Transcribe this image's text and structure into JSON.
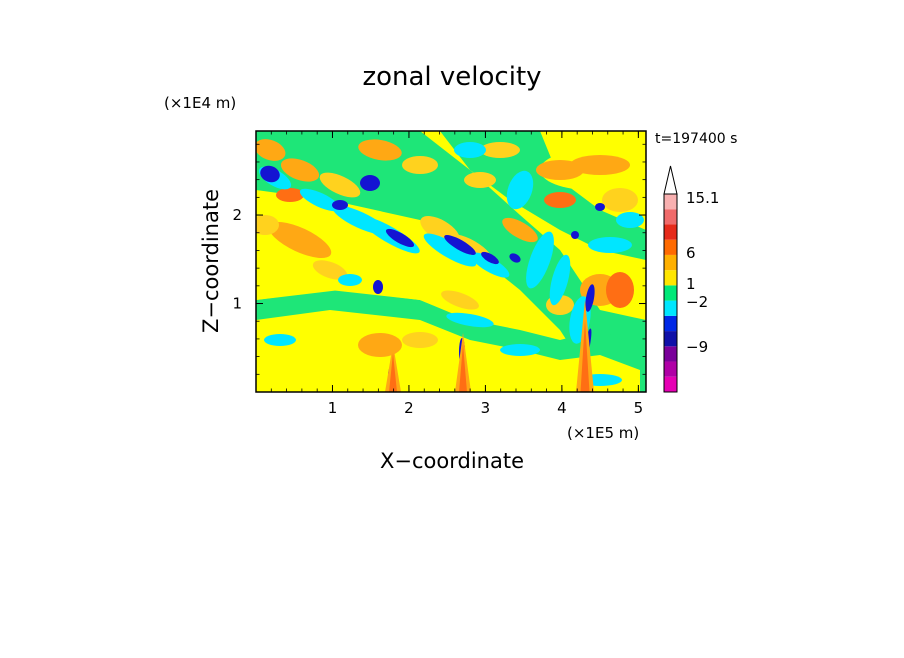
{
  "chart_data": {
    "type": "heatmap",
    "title": "zonal velocity",
    "xlabel": "X−coordinate",
    "ylabel": "Z−coordinate",
    "x_unit": "(×1E5 m)",
    "y_unit": "(×1E4 m)",
    "time_label": "t=197400 s",
    "xlim": [
      0.0,
      5.1
    ],
    "ylim": [
      0.0,
      2.95
    ],
    "x_ticks": [
      1,
      2,
      3,
      4,
      5
    ],
    "y_ticks": [
      1,
      2
    ],
    "x_tick_labels": [
      "1",
      "2",
      "3",
      "4",
      "5"
    ],
    "y_tick_labels": [
      "1",
      "2"
    ],
    "colorbar": {
      "colors": [
        "#e600b4",
        "#b000a6",
        "#7a009a",
        "#1010a8",
        "#0028e6",
        "#00e6ff",
        "#00e878",
        "#ffe600",
        "#ffb000",
        "#ff6a00",
        "#e62a1a",
        "#f06a6a",
        "#f8b0b0"
      ],
      "tick_labels": [
        "15.1",
        "6",
        "1",
        "−2",
        "−9"
      ],
      "tick_levels": [
        15.1,
        6,
        1,
        -2,
        -9
      ],
      "extend_top": true,
      "top_color": "#ffffff"
    },
    "field_colors": {
      "background": "#ffff00",
      "positive_light": "#ffd21e",
      "positive_mid": "#ffa814",
      "positive_strong": "#ff6e14",
      "negative_light": "#1ee678",
      "negative_mid": "#00e6ff",
      "negative_strong": "#1414d2"
    },
    "grid": false
  }
}
